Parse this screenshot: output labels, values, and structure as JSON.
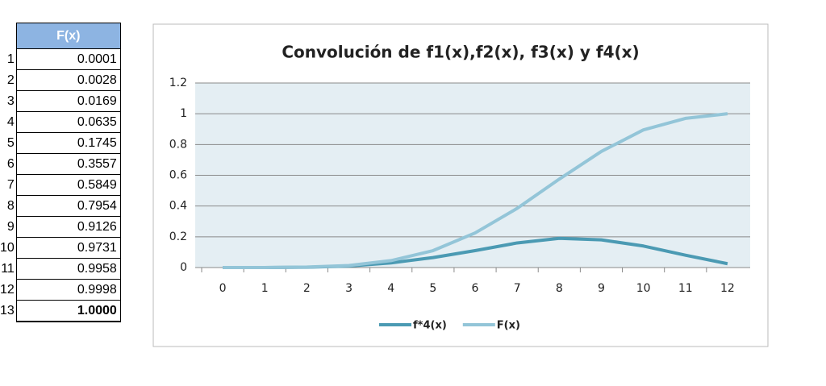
{
  "table": {
    "header": "F(x)",
    "rows": [
      [
        1,
        "0.0001"
      ],
      [
        2,
        "0.0028"
      ],
      [
        3,
        "0.0169"
      ],
      [
        4,
        "0.0635"
      ],
      [
        5,
        "0.1745"
      ],
      [
        6,
        "0.3557"
      ],
      [
        7,
        "0.5849"
      ],
      [
        8,
        "0.7954"
      ],
      [
        9,
        "0.9126"
      ],
      [
        10,
        "0.9731"
      ],
      [
        11,
        "0.9958"
      ],
      [
        12,
        "0.9998"
      ],
      [
        13,
        "1.0000"
      ]
    ]
  },
  "chart_data": {
    "type": "line",
    "title": "Convolución de f1(x),f2(x), f3(x) y f4(x)",
    "categories": [
      0,
      1,
      2,
      3,
      4,
      5,
      6,
      7,
      8,
      9,
      10,
      11,
      12
    ],
    "series": [
      {
        "name": "f*4(x)",
        "color": "#4b9ab3",
        "values": [
          0,
          0,
          0.002,
          0.01,
          0.03,
          0.065,
          0.11,
          0.16,
          0.19,
          0.18,
          0.14,
          0.08,
          0.025
        ]
      },
      {
        "name": "F(x)",
        "color": "#93c5d8",
        "values": [
          0,
          0,
          0.003,
          0.013,
          0.045,
          0.11,
          0.225,
          0.385,
          0.575,
          0.755,
          0.895,
          0.97,
          1.0
        ]
      }
    ],
    "ylim": [
      0,
      1.2
    ],
    "yticks": [
      0,
      0.2,
      0.4,
      0.6,
      0.8,
      1,
      1.2
    ],
    "grid": true,
    "legend": "bottom"
  }
}
